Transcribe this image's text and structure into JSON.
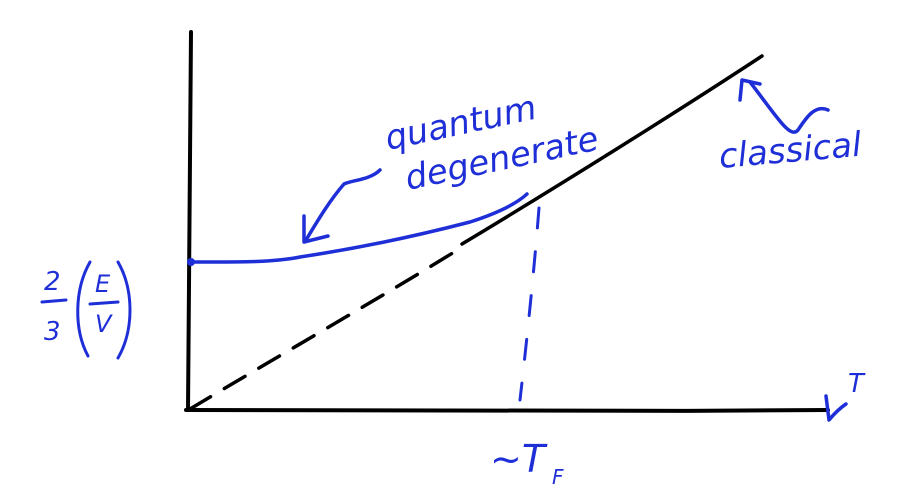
{
  "diagram": {
    "colors": {
      "axis": "#000000",
      "annotation": "#1f2fd8"
    },
    "labels": {
      "y_axis": "2/3(E/V)",
      "y_axis_num": "2",
      "y_axis_den": "3",
      "y_axis_frac_top": "E",
      "y_axis_frac_bottom": "V",
      "x_axis": "T",
      "fermi_marker": "~T",
      "fermi_subscript": "F",
      "quantum_line1": "quantum",
      "quantum_line2": "degenerate",
      "classical": "classical"
    },
    "curves": {
      "classical_line": "solid straight line through origin (classical limit)",
      "quantum_curve": "blue curve starting at nonzero value, merging into classical line",
      "extrapolation": "dashed continuation of classical line to origin",
      "fermi_drop": "dashed vertical line at T ~ T_F"
    }
  }
}
